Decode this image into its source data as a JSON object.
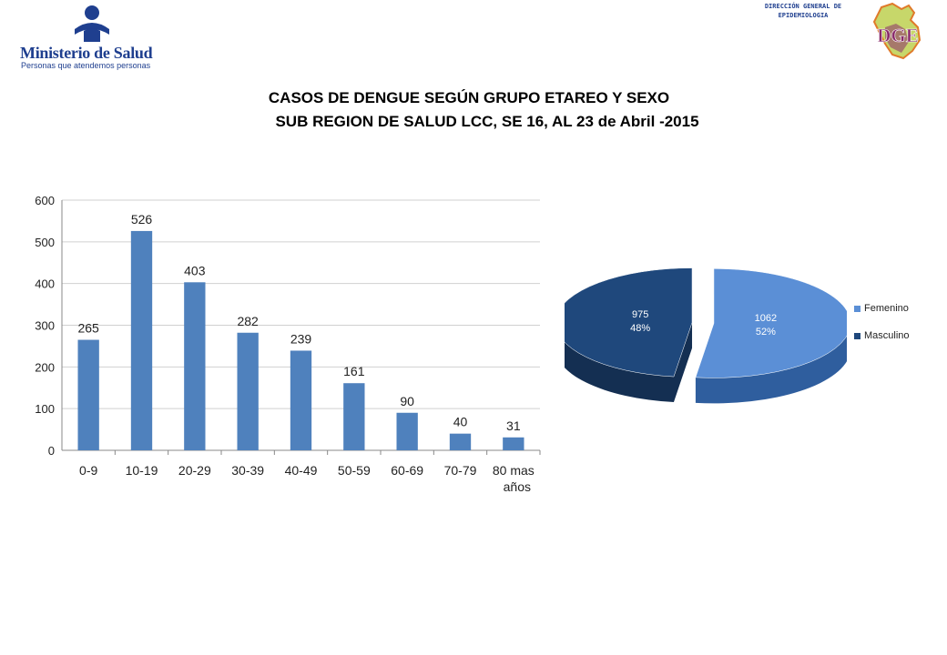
{
  "header": {
    "ministry_name": "Ministerio de Salud",
    "ministry_tagline": "Personas que atendemos personas",
    "dge_line1": "DIRECCIÓN GENERAL DE",
    "dge_line2": "EPIDEMIOLOGIA",
    "dge_logo_text": "DGE"
  },
  "title": {
    "line1": "CASOS DE DENGUE SEGÚN  GRUPO ETAREO Y SEXO",
    "line2": "SUB REGION DE SALUD LCC, SE 16, AL 23 de Abril -2015"
  },
  "colors": {
    "bar": "#4f81bd",
    "femenino": "#5b8fd6",
    "masculino": "#1f487c",
    "grid": "#d0d0d0",
    "brand": "#1f3f8f"
  },
  "chart_data": [
    {
      "type": "bar",
      "title": "",
      "xlabel": "",
      "ylabel": "",
      "categories": [
        "0-9",
        "10-19",
        "20-29",
        "30-39",
        "40-49",
        "50-59",
        "60-69",
        "70-79",
        "80 mas años"
      ],
      "values": [
        265,
        526,
        403,
        282,
        239,
        161,
        90,
        40,
        31
      ],
      "ylim": [
        0,
        600
      ],
      "yticks": [
        0,
        100,
        200,
        300,
        400,
        500,
        600
      ],
      "grid": true,
      "data_labels": true
    },
    {
      "type": "pie",
      "title": "",
      "labels": [
        "Femenino",
        "Masculino"
      ],
      "values": [
        1062,
        975
      ],
      "percentages": [
        "52%",
        "48%"
      ],
      "legend_position": "right",
      "exploded": true,
      "style": "3d"
    }
  ]
}
